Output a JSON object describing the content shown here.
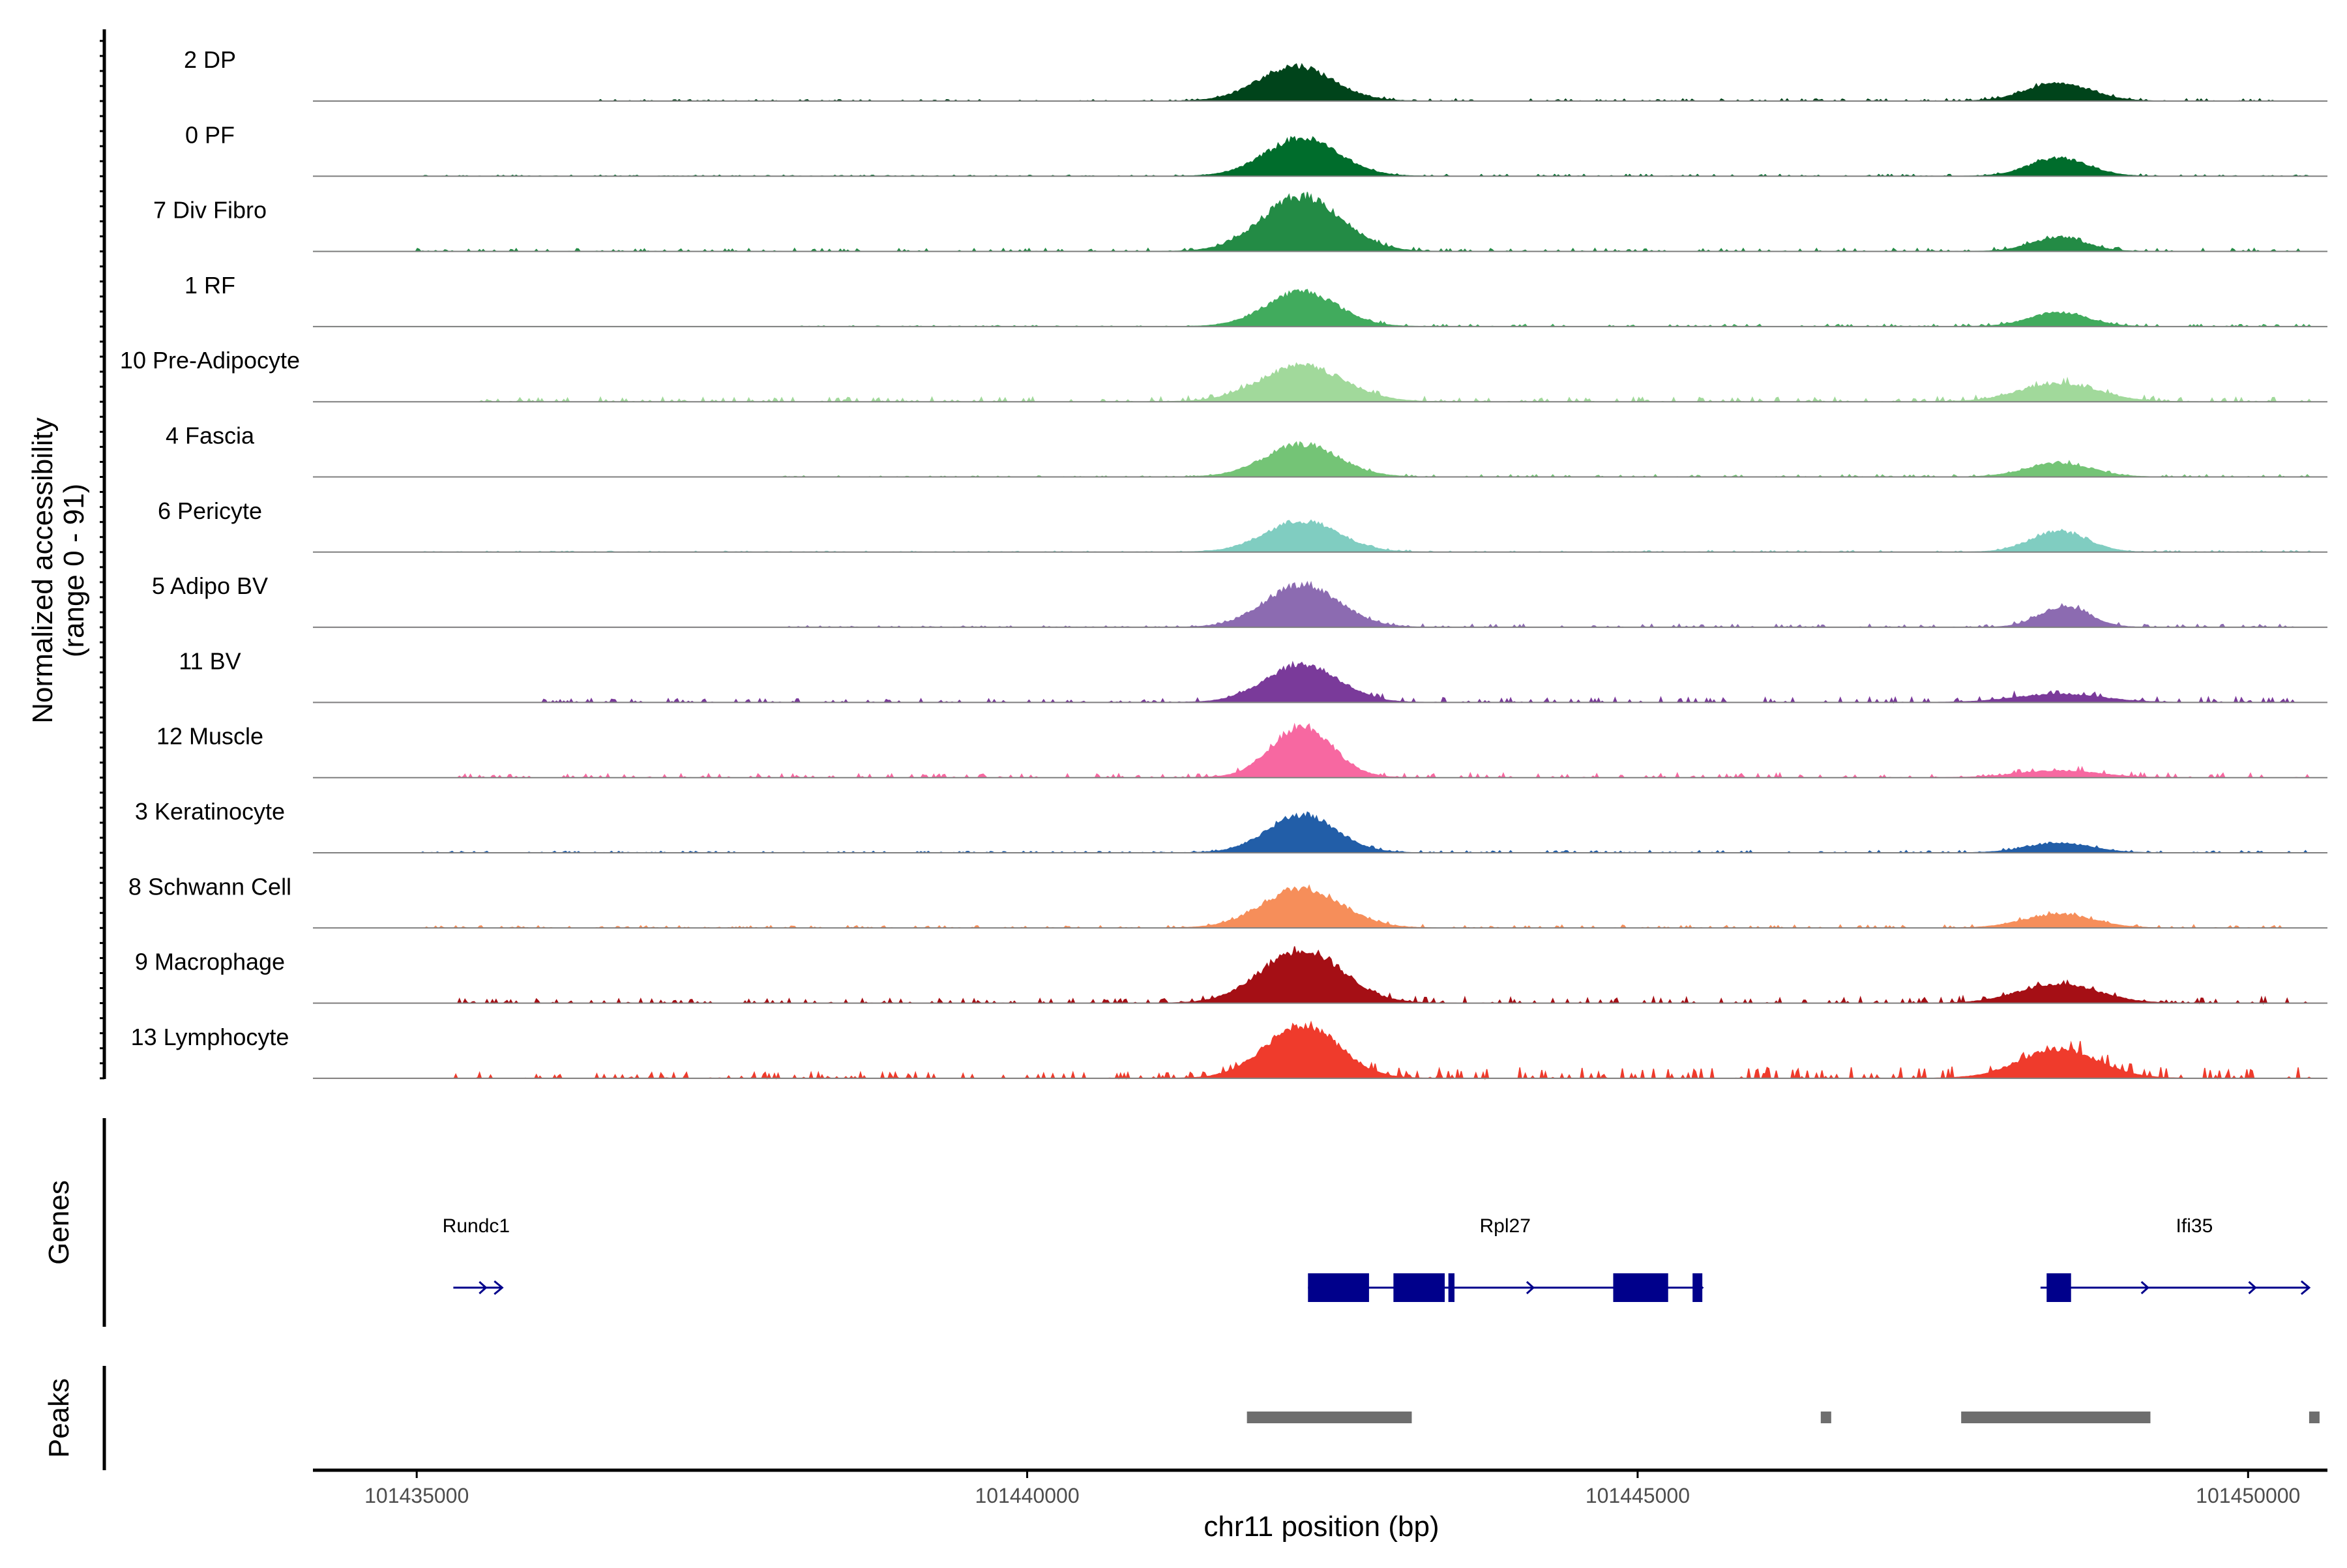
{
  "chart_data": {
    "type": "area",
    "title": "",
    "ylabel": "Normalized accessibility",
    "ylabel_range": "(range 0 - 91)",
    "y_range": [
      0,
      91
    ],
    "xlabel": "chr11 position (bp)",
    "xlim": [
      101434150,
      101450650
    ],
    "x_ticks": [
      101435000,
      101440000,
      101445000,
      101450000
    ],
    "x_tick_labels": [
      "101435000",
      "101440000",
      "101445000",
      "101450000"
    ],
    "tracks": [
      {
        "name": "2 DP",
        "color": "#00441b",
        "peaks": [
          [
            101442200,
            51,
            300
          ],
          [
            101448450,
            26,
            260
          ]
        ],
        "noise": [
          [
            101436500,
            101441800,
            2
          ],
          [
            101442800,
            101450500,
            3
          ]
        ]
      },
      {
        "name": "0 PF",
        "color": "#006d2c",
        "peaks": [
          [
            101442250,
            55,
            300
          ],
          [
            101448450,
            26,
            240
          ]
        ],
        "noise": [
          [
            101435000,
            101441800,
            1.5
          ],
          [
            101442800,
            101450500,
            2.5
          ]
        ]
      },
      {
        "name": "7 Div Fibro",
        "color": "#238b45",
        "peaks": [
          [
            101442250,
            80,
            320
          ],
          [
            101448450,
            20,
            220
          ]
        ],
        "noise": [
          [
            101435000,
            101441800,
            4
          ],
          [
            101442800,
            101450500,
            4
          ]
        ]
      },
      {
        "name": "1 RF",
        "color": "#41ab5d",
        "peaks": [
          [
            101442250,
            51,
            290
          ],
          [
            101448450,
            20,
            240
          ]
        ],
        "noise": [
          [
            101438000,
            101441800,
            1.5
          ],
          [
            101442800,
            101450500,
            3
          ]
        ]
      },
      {
        "name": "10 Pre-Adipocyte",
        "color": "#a1d99b",
        "peaks": [
          [
            101442250,
            52,
            340
          ],
          [
            101448450,
            26,
            320
          ]
        ],
        "noise": [
          [
            101435500,
            101441800,
            6
          ],
          [
            101442800,
            101450500,
            6
          ]
        ]
      },
      {
        "name": "4 Fascia",
        "color": "#74c476",
        "peaks": [
          [
            101442250,
            47,
            300
          ],
          [
            101448450,
            20,
            260
          ]
        ],
        "noise": [
          [
            101438000,
            101441800,
            1.5
          ],
          [
            101442800,
            101450500,
            3
          ]
        ]
      },
      {
        "name": "6 Pericyte",
        "color": "#80cdc1",
        "peaks": [
          [
            101442250,
            45,
            300
          ],
          [
            101448450,
            30,
            230
          ]
        ],
        "noise": [
          [
            101435000,
            101441800,
            1.2
          ],
          [
            101442800,
            101450500,
            2
          ]
        ]
      },
      {
        "name": "5 Adipo BV",
        "color": "#8c6bb1",
        "peaks": [
          [
            101442250,
            62,
            300
          ],
          [
            101448500,
            30,
            200
          ]
        ],
        "noise": [
          [
            101438000,
            101441800,
            2
          ],
          [
            101442800,
            101450500,
            4
          ]
        ]
      },
      {
        "name": "11 BV",
        "color": "#7a3a9a",
        "peaks": [
          [
            101442250,
            55,
            300
          ],
          [
            101448450,
            12,
            350
          ]
        ],
        "noise": [
          [
            101436000,
            101441800,
            5
          ],
          [
            101442800,
            101450500,
            7
          ]
        ]
      },
      {
        "name": "12 Muscle",
        "color": "#f768a1",
        "peaks": [
          [
            101442250,
            75,
            250
          ],
          [
            101448450,
            10,
            320
          ]
        ],
        "noise": [
          [
            101435300,
            101441800,
            5
          ],
          [
            101442800,
            101450500,
            6
          ]
        ]
      },
      {
        "name": "3 Keratinocyte",
        "color": "#225ea8",
        "peaks": [
          [
            101442250,
            55,
            280
          ],
          [
            101448450,
            14,
            260
          ]
        ],
        "noise": [
          [
            101435000,
            101441800,
            2
          ],
          [
            101442800,
            101450500,
            3
          ]
        ]
      },
      {
        "name": "8 Schwann Cell",
        "color": "#f68e5a",
        "peaks": [
          [
            101442250,
            58,
            320
          ],
          [
            101448450,
            20,
            280
          ]
        ],
        "noise": [
          [
            101435000,
            101441800,
            3
          ],
          [
            101442800,
            101450500,
            4
          ]
        ]
      },
      {
        "name": "9 Macrophage",
        "color": "#a50f15",
        "peaks": [
          [
            101442250,
            78,
            330
          ],
          [
            101448450,
            28,
            320
          ]
        ],
        "noise": [
          [
            101435300,
            101441800,
            6
          ],
          [
            101442800,
            101450500,
            8
          ]
        ]
      },
      {
        "name": "13 Lymphocyte",
        "color": "#ef3b2c",
        "peaks": [
          [
            101442250,
            78,
            300
          ],
          [
            101448450,
            42,
            320
          ]
        ],
        "noise": [
          [
            101435300,
            101441800,
            8
          ],
          [
            101442800,
            101450500,
            15
          ]
        ]
      }
    ],
    "genes_panel_label": "Genes",
    "genes": [
      {
        "name": "Rundc1",
        "start": 101435300,
        "end": 101435700,
        "strand": "+",
        "exons": []
      },
      {
        "name": "Rpl27",
        "start": 101442300,
        "end": 101445530,
        "strand": "+",
        "exons": [
          [
            101442300,
            101442800
          ],
          [
            101443000,
            101443420
          ],
          [
            101443450,
            101443500
          ],
          [
            101444800,
            101445250
          ],
          [
            101445450,
            101445530
          ]
        ]
      },
      {
        "name": "Ifi35",
        "start": 101448300,
        "end": 101450500,
        "strand": "+",
        "exons": [
          [
            101448350,
            101448550
          ]
        ]
      }
    ],
    "peaks_panel_label": "Peaks",
    "peak_regions": [
      [
        101441800,
        101443150
      ],
      [
        101446500,
        101446580
      ],
      [
        101447650,
        101449200
      ],
      [
        101450500,
        101450580
      ]
    ],
    "colors": {
      "gene": "#00008b",
      "peak": "#6e6e6e",
      "baseline": "#7f7f7f"
    }
  }
}
